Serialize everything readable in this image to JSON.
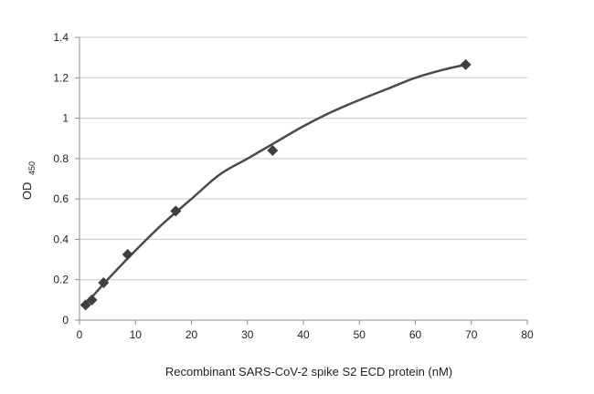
{
  "chart_data": {
    "type": "scatter",
    "title": "",
    "xlabel": "Recombinant SARS-CoV-2 spike S2 ECD protein (nM)",
    "ylabel_main": "OD",
    "ylabel_sub": "450",
    "xlim": [
      0,
      80
    ],
    "ylim": [
      0,
      1.4
    ],
    "x_ticks": [
      "0",
      "10",
      "20",
      "30",
      "40",
      "50",
      "60",
      "70",
      "80"
    ],
    "y_ticks": [
      "0",
      "0.2",
      "0.4",
      "0.6",
      "0.8",
      "1",
      "1.2",
      "1.4"
    ],
    "x_tick_values": [
      0,
      10,
      20,
      30,
      40,
      50,
      60,
      70,
      80
    ],
    "y_tick_values": [
      0,
      0.2,
      0.4,
      0.6,
      0.8,
      1.0,
      1.2,
      1.4
    ],
    "grid": "horizontal",
    "legend": "none",
    "points": {
      "x": [
        1.1,
        2.2,
        4.3,
        8.6,
        17.2,
        34.5,
        69
      ],
      "y": [
        0.075,
        0.1,
        0.185,
        0.325,
        0.54,
        0.84,
        1.265
      ]
    },
    "trendline": {
      "type": "polynomial",
      "x": [
        1,
        5,
        10,
        15,
        20,
        25,
        30,
        35,
        40,
        45,
        50,
        55,
        60,
        65,
        69
      ],
      "y": [
        0.075,
        0.2,
        0.345,
        0.48,
        0.6,
        0.72,
        0.8,
        0.88,
        0.96,
        1.03,
        1.09,
        1.145,
        1.2,
        1.24,
        1.265
      ]
    },
    "colors": {
      "marker": "#3f3f3f",
      "line": "#4a4a4a",
      "grid": "#c8c8c8",
      "axis": "#8c8c8c"
    }
  }
}
